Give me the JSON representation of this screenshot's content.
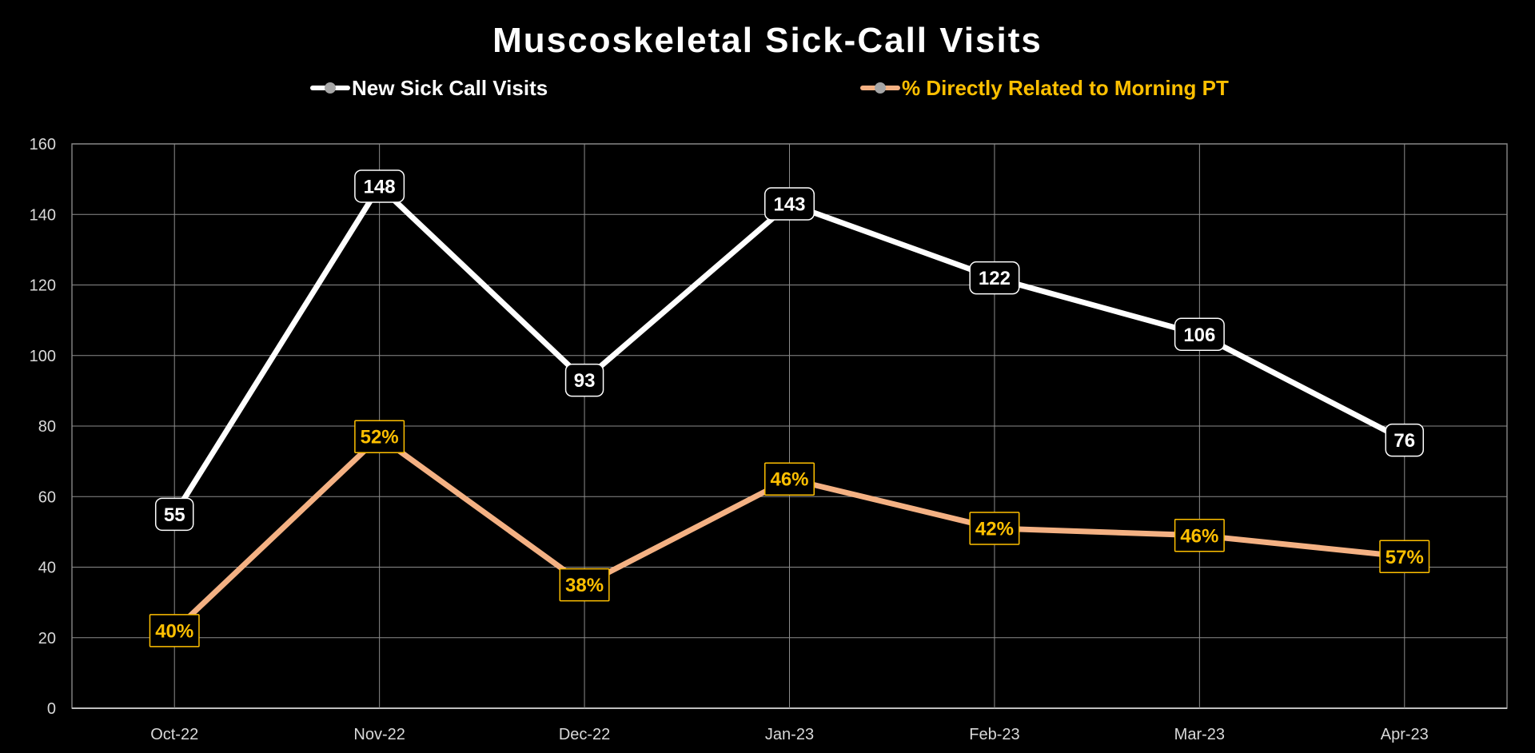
{
  "chart_data": {
    "type": "line",
    "title": "Muscoskeletal Sick-Call Visits",
    "categories": [
      "Oct-22",
      "Nov-22",
      "Dec-22",
      "Jan-23",
      "Feb-23",
      "Mar-23",
      "Apr-23"
    ],
    "series": [
      {
        "name": "New Sick Call Visits",
        "values": [
          55,
          148,
          93,
          143,
          122,
          106,
          76
        ],
        "labels": [
          "55",
          "148",
          "93",
          "143",
          "122",
          "106",
          "76"
        ],
        "color": "#ffffff",
        "label_color": "#ffffff"
      },
      {
        "name": "% Directly Related to Morning PT",
        "values": [
          22,
          77,
          35,
          65,
          51,
          49,
          43
        ],
        "labels": [
          "40%",
          "52%",
          "38%",
          "46%",
          "42%",
          "46%",
          "57%"
        ],
        "color": "#f4b183",
        "label_color": "#ffc000"
      }
    ],
    "ylim": [
      0,
      160
    ],
    "yticks": [
      "0",
      "20",
      "40",
      "60",
      "80",
      "100",
      "120",
      "140",
      "160"
    ],
    "grid": true,
    "legend_position": "top",
    "xlabel": "",
    "ylabel": ""
  }
}
